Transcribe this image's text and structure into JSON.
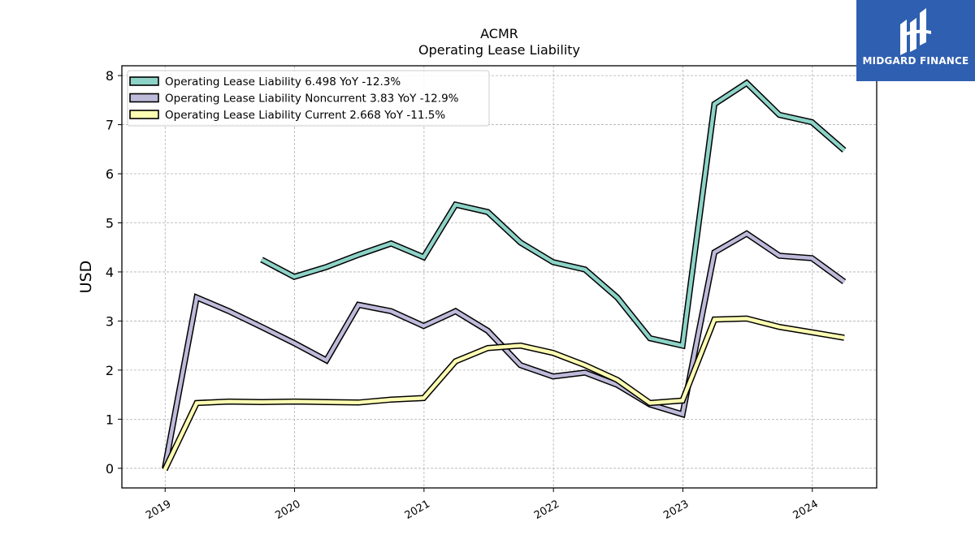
{
  "chart_data": {
    "type": "line",
    "title": "ACMR",
    "subtitle": "Operating Lease Liability",
    "xlabel": "",
    "ylabel": "USD",
    "x_tick_labels": [
      "2019",
      "2020",
      "2021",
      "2022",
      "2023",
      "2024"
    ],
    "y_ticks": [
      0,
      1,
      2,
      3,
      4,
      5,
      6,
      7,
      8
    ],
    "ylim": [
      -0.4,
      8.2
    ],
    "xlim": [
      "2018-09",
      "2024-07"
    ],
    "grid": true,
    "legend_position": "top-left",
    "series": [
      {
        "name": "Operating Lease Liability",
        "legend": "Operating Lease Liability  6.498 YoY -12.3%",
        "color": "#8dd3c7",
        "points": [
          [
            "2019-09-30",
            4.25
          ],
          [
            "2019-12-31",
            3.9
          ],
          [
            "2020-03-31",
            4.1
          ],
          [
            "2020-06-30",
            4.35
          ],
          [
            "2020-09-30",
            4.58
          ],
          [
            "2020-12-31",
            4.3
          ],
          [
            "2021-03-31",
            5.37
          ],
          [
            "2021-06-30",
            5.22
          ],
          [
            "2021-09-30",
            4.6
          ],
          [
            "2021-12-31",
            4.2
          ],
          [
            "2022-03-31",
            4.05
          ],
          [
            "2022-06-30",
            3.48
          ],
          [
            "2022-09-30",
            2.65
          ],
          [
            "2022-12-31",
            2.5
          ],
          [
            "2023-03-31",
            7.42
          ],
          [
            "2023-06-30",
            7.85
          ],
          [
            "2023-09-30",
            7.2
          ],
          [
            "2023-12-31",
            7.05
          ],
          [
            "2024-03-31",
            6.48
          ]
        ]
      },
      {
        "name": "Operating Lease Liability Noncurrent",
        "legend": "Operating Lease Liability Noncurrent  3.83 YoY -12.9%",
        "color": "#bebada",
        "points": [
          [
            "2018-12-31",
            0.0
          ],
          [
            "2019-03-31",
            3.48
          ],
          [
            "2019-06-30",
            3.2
          ],
          [
            "2019-09-30",
            2.88
          ],
          [
            "2019-12-31",
            2.55
          ],
          [
            "2020-03-31",
            2.2
          ],
          [
            "2020-06-30",
            3.33
          ],
          [
            "2020-09-30",
            3.2
          ],
          [
            "2020-12-31",
            2.9
          ],
          [
            "2021-03-31",
            3.2
          ],
          [
            "2021-06-30",
            2.8
          ],
          [
            "2021-09-30",
            2.1
          ],
          [
            "2021-12-31",
            1.87
          ],
          [
            "2022-03-31",
            1.95
          ],
          [
            "2022-06-30",
            1.7
          ],
          [
            "2022-09-30",
            1.3
          ],
          [
            "2022-12-31",
            1.1
          ],
          [
            "2023-03-31",
            4.4
          ],
          [
            "2023-06-30",
            4.78
          ],
          [
            "2023-09-30",
            4.33
          ],
          [
            "2023-12-31",
            4.28
          ],
          [
            "2024-03-31",
            3.8
          ]
        ]
      },
      {
        "name": "Operating Lease Liability Current",
        "legend": "Operating Lease Liability Current  2.668 YoY -11.5%",
        "color": "#ffffb3",
        "points": [
          [
            "2018-12-31",
            -0.03
          ],
          [
            "2019-03-31",
            1.33
          ],
          [
            "2019-06-30",
            1.36
          ],
          [
            "2019-09-30",
            1.35
          ],
          [
            "2019-12-31",
            1.36
          ],
          [
            "2020-03-31",
            1.35
          ],
          [
            "2020-06-30",
            1.34
          ],
          [
            "2020-09-30",
            1.4
          ],
          [
            "2020-12-31",
            1.43
          ],
          [
            "2021-03-31",
            2.18
          ],
          [
            "2021-06-30",
            2.45
          ],
          [
            "2021-09-30",
            2.5
          ],
          [
            "2021-12-31",
            2.35
          ],
          [
            "2022-03-31",
            2.1
          ],
          [
            "2022-06-30",
            1.8
          ],
          [
            "2022-09-30",
            1.33
          ],
          [
            "2022-12-31",
            1.38
          ],
          [
            "2023-03-31",
            3.03
          ],
          [
            "2023-06-30",
            3.05
          ],
          [
            "2023-09-30",
            2.88
          ],
          [
            "2023-12-31",
            2.77
          ],
          [
            "2024-03-31",
            2.66
          ]
        ]
      }
    ]
  },
  "branding": {
    "name": "MIDGARD FINANCE",
    "color": "#2f5fb0"
  }
}
